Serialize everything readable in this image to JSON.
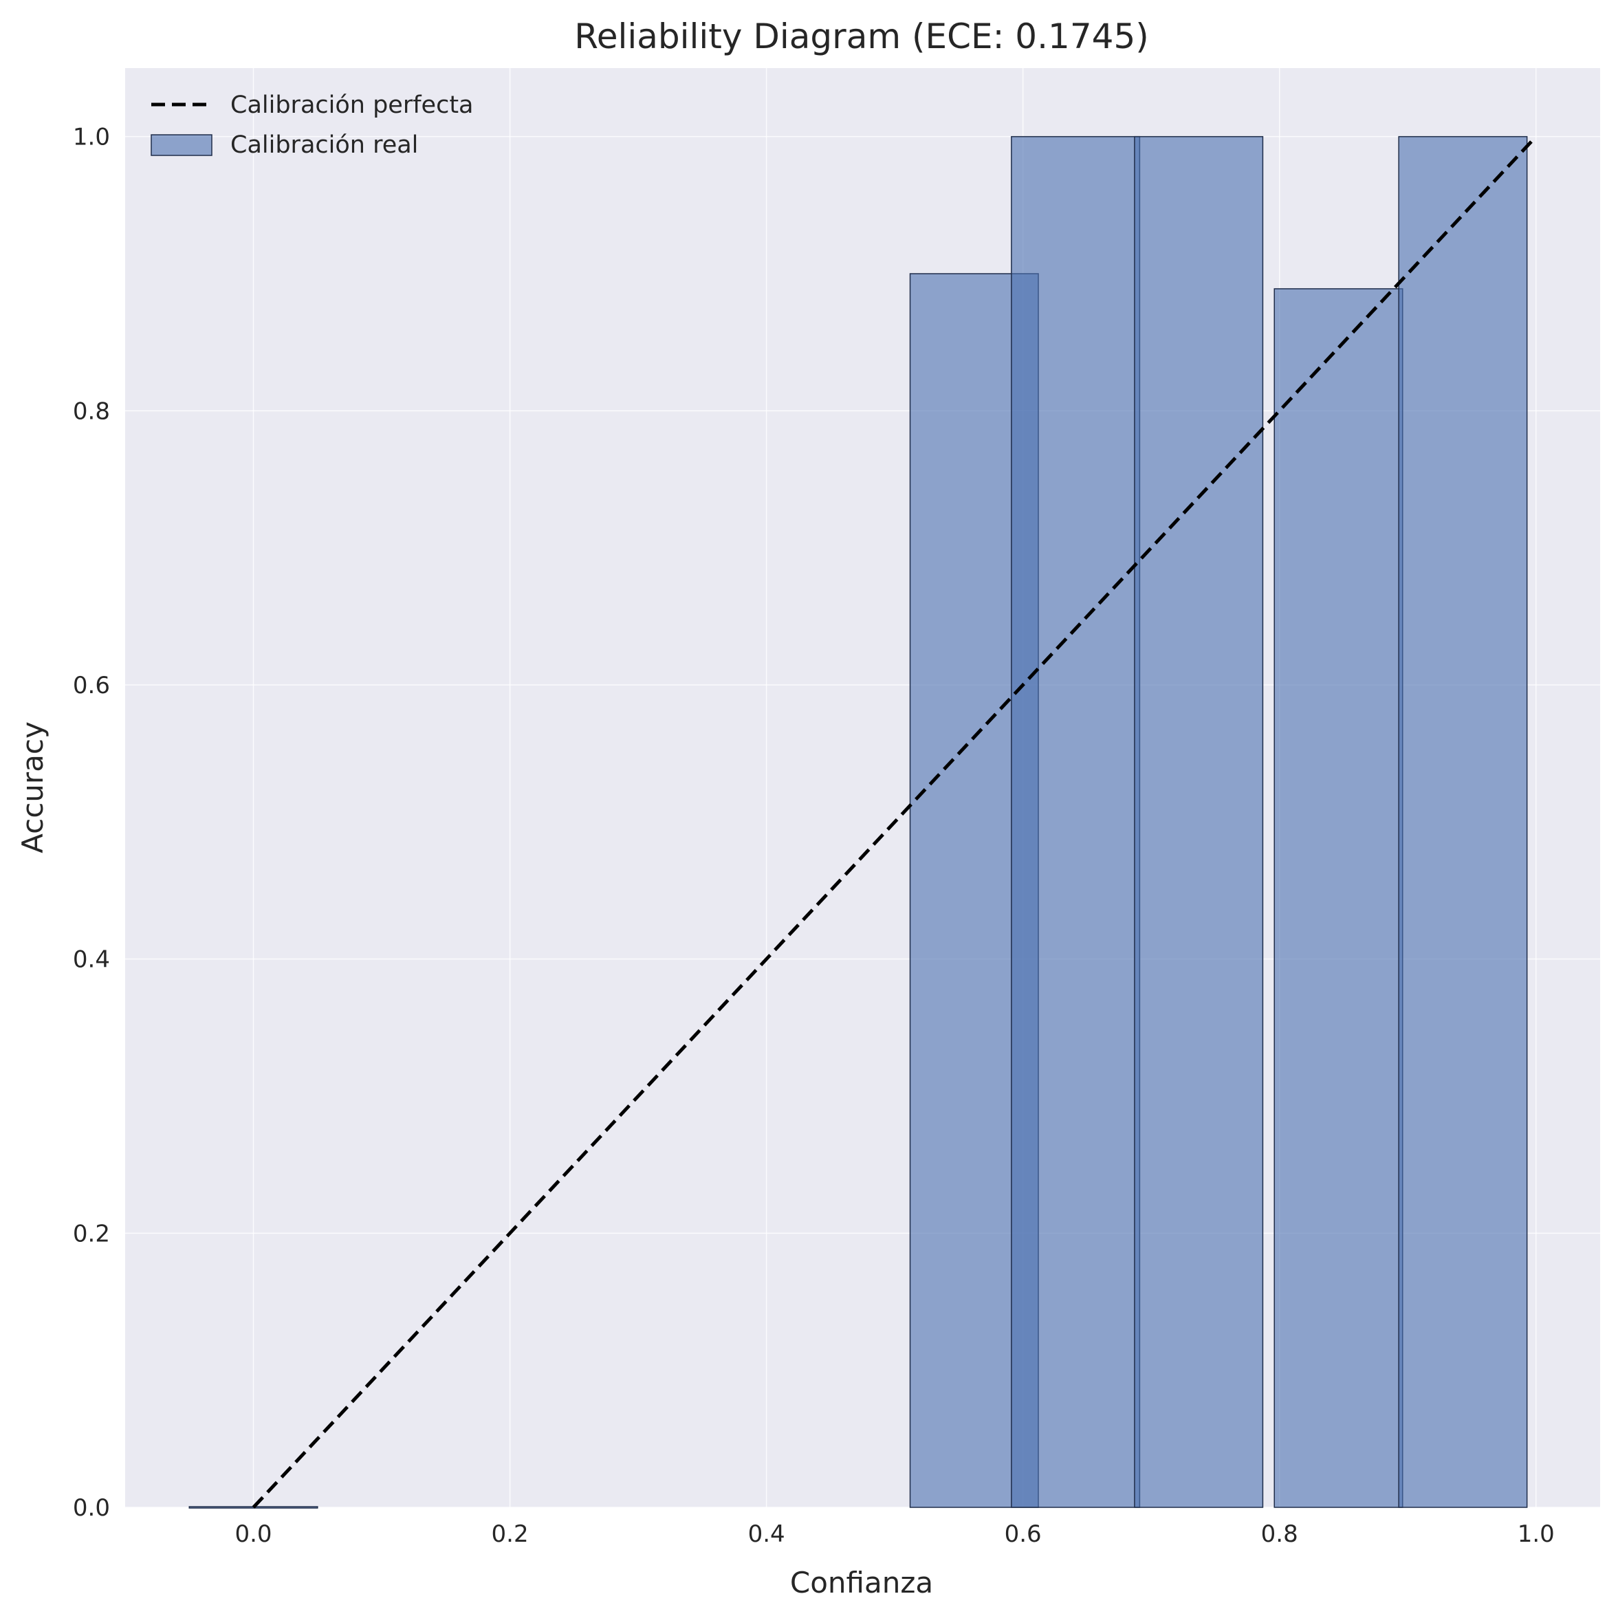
{
  "chart_data": {
    "type": "bar",
    "title": "Reliability Diagram (ECE: 0.1745)",
    "xlabel": "Confianza",
    "ylabel": "Accuracy",
    "xlim": [
      -0.1,
      1.05
    ],
    "ylim": [
      0,
      1.05
    ],
    "xticks": [
      "0.0",
      "0.2",
      "0.4",
      "0.6",
      "0.8",
      "1.0"
    ],
    "yticks": [
      "0.0",
      "0.2",
      "0.4",
      "0.6",
      "0.8",
      "1.0"
    ],
    "grid": true,
    "legend_position": "top-left",
    "bar_width": 0.1,
    "series": [
      {
        "name": "Calibración perfecta",
        "kind": "line",
        "style": "dashed",
        "color": "#000000",
        "points": [
          [
            0,
            0
          ],
          [
            1,
            1
          ]
        ]
      },
      {
        "name": "Calibración real",
        "kind": "bar",
        "color": "#4c72b0",
        "bars": [
          {
            "x": 0.0,
            "value": 0.0
          },
          {
            "x": 0.562,
            "value": 0.9
          },
          {
            "x": 0.641,
            "value": 1.0
          },
          {
            "x": 0.737,
            "value": 1.0
          },
          {
            "x": 0.846,
            "value": 0.889
          },
          {
            "x": 0.943,
            "value": 1.0
          }
        ]
      }
    ]
  },
  "colors": {
    "plot_background": "#eaeaf2",
    "grid": "#ffffff",
    "bar_fill": "#4c72b0",
    "bar_edge": "#1f2d4a",
    "diagonal": "#000000"
  }
}
